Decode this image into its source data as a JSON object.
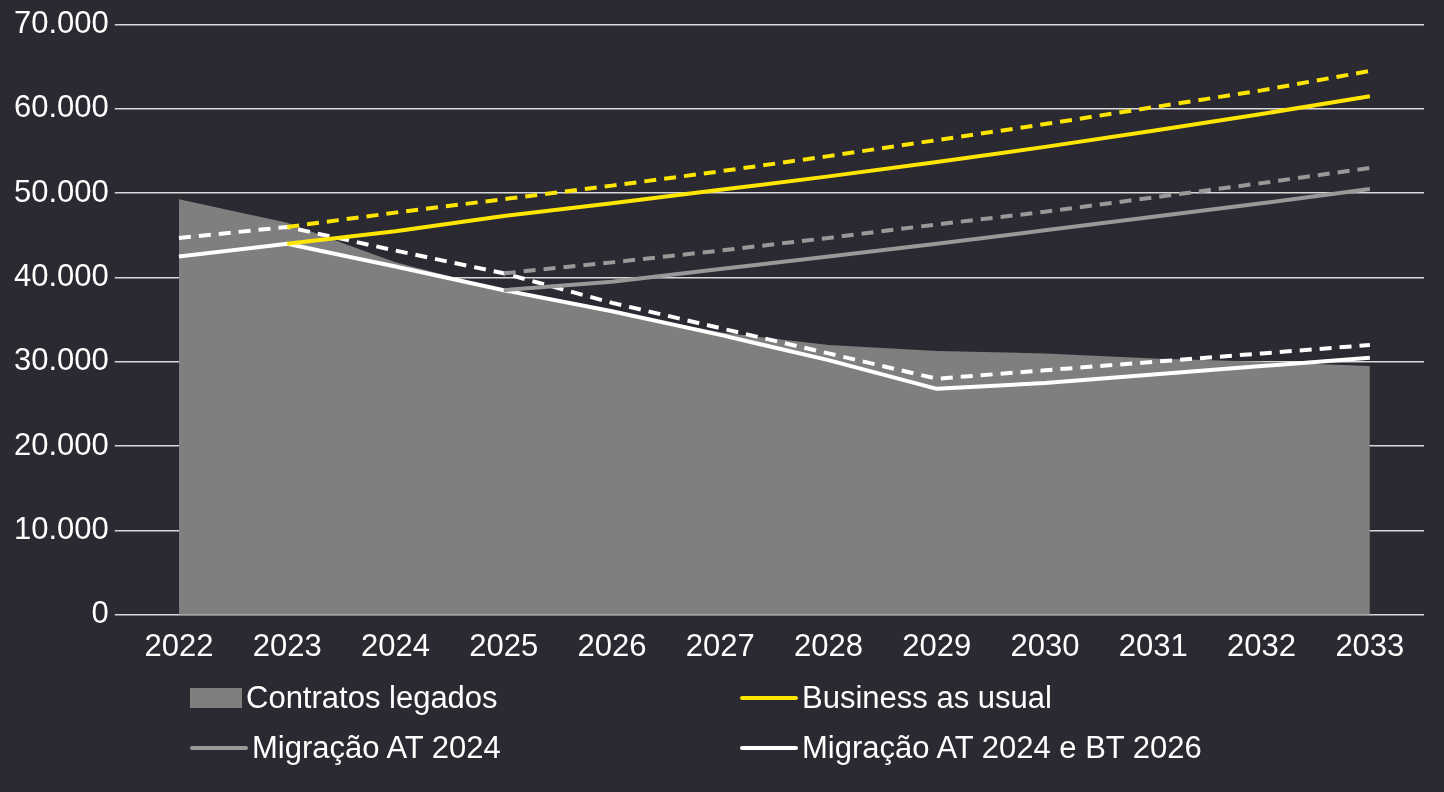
{
  "chart_data": {
    "type": "line",
    "categories": [
      "2022",
      "2023",
      "2024",
      "2025",
      "2026",
      "2027",
      "2028",
      "2029",
      "2030",
      "2031",
      "2032",
      "2033"
    ],
    "series": [
      {
        "name": "Contratos legados",
        "type": "area",
        "color": "#7f7f7f",
        "values": [
          49300,
          46500,
          41800,
          38500,
          36000,
          33500,
          32000,
          31300,
          31000,
          30400,
          30000,
          29500
        ]
      },
      {
        "name": "Business as usual",
        "color": "#ffe600",
        "values": [
          null,
          44000,
          45500,
          47300,
          48800,
          50400,
          52000,
          53700,
          55500,
          57400,
          59400,
          61500
        ]
      },
      {
        "color": "#ffe600",
        "line_style": "dashed",
        "values": [
          null,
          46000,
          47700,
          49300,
          50900,
          52600,
          54400,
          56300,
          58200,
          60200,
          62200,
          64500
        ]
      },
      {
        "name": "Migração AT 2024",
        "color": "#999999",
        "values": [
          null,
          null,
          null,
          38500,
          39500,
          41000,
          42500,
          44000,
          45600,
          47200,
          48800,
          50500
        ]
      },
      {
        "color": "#999999",
        "line_style": "dashed",
        "values": [
          null,
          null,
          null,
          40500,
          41800,
          43200,
          44700,
          46300,
          47800,
          49500,
          51200,
          53000
        ]
      },
      {
        "name": "Migração AT 2024 e BT 2026",
        "color": "#ffffff",
        "values": [
          42500,
          44000,
          41300,
          38500,
          36000,
          33200,
          30200,
          26800,
          27500,
          28500,
          29500,
          30500
        ]
      },
      {
        "color": "#ffffff",
        "line_style": "dashed",
        "values": [
          44700,
          46000,
          43200,
          40500,
          37000,
          34000,
          31000,
          28000,
          29000,
          30000,
          31000,
          32000
        ]
      }
    ],
    "ylim": [
      0,
      70000
    ],
    "yticks": [
      {
        "value": 0,
        "label": "0"
      },
      {
        "value": 10000,
        "label": "10.000"
      },
      {
        "value": 20000,
        "label": "20.000"
      },
      {
        "value": 30000,
        "label": "30.000"
      },
      {
        "value": 40000,
        "label": "40.000"
      },
      {
        "value": 50000,
        "label": "50.000"
      },
      {
        "value": 60000,
        "label": "60.000"
      },
      {
        "value": 70000,
        "label": "70.000"
      }
    ],
    "grid": "y",
    "legend": "bottom",
    "marker": "none"
  }
}
